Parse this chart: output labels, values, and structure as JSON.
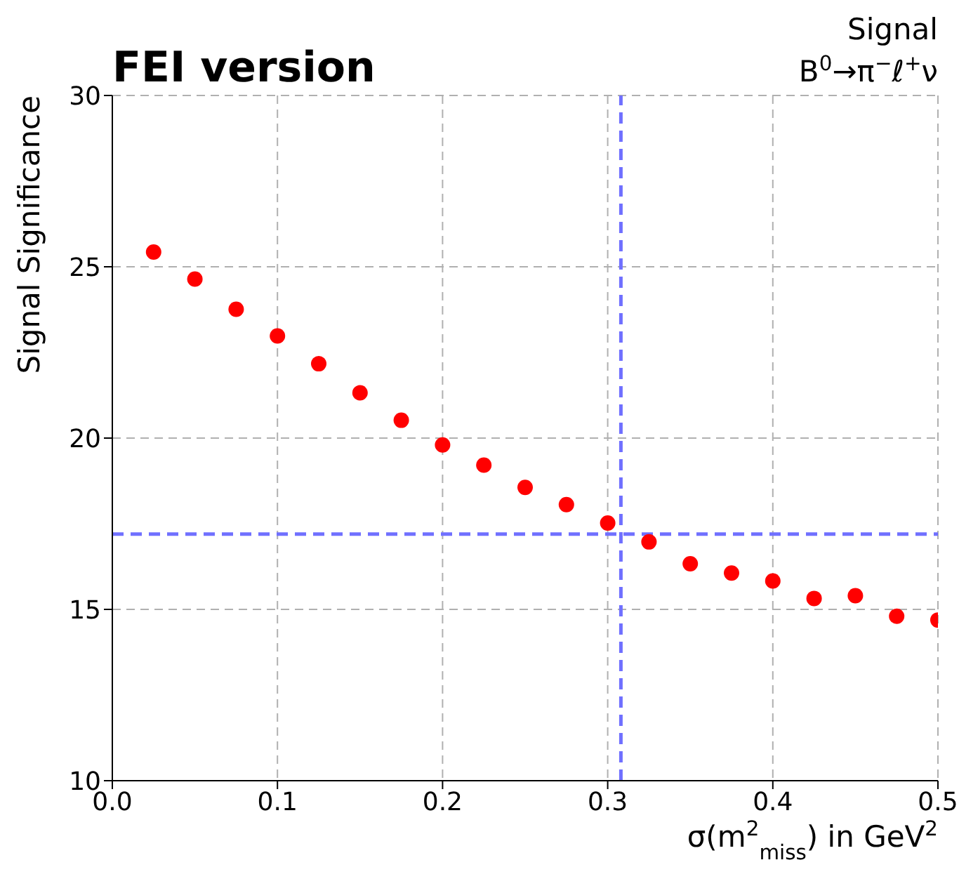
{
  "chart_data": {
    "type": "scatter",
    "title": "FEI version",
    "annotations": [
      "Signal",
      "B$^{0}$→π$^{−}$ℓ$^{+}$ν"
    ],
    "xlabel": "σ(m$^{2}$$_{miss}$) in GeV$^{2}$",
    "ylabel": "Signal Significance",
    "x": [
      0.025,
      0.05,
      0.075,
      0.1,
      0.125,
      0.15,
      0.175,
      0.2,
      0.225,
      0.25,
      0.275,
      0.3,
      0.325,
      0.35,
      0.375,
      0.4,
      0.425,
      0.45,
      0.475,
      0.5
    ],
    "series": [
      {
        "color": "#ff0000",
        "values": [
          25.43,
          24.64,
          23.76,
          22.98,
          22.17,
          21.32,
          20.52,
          19.8,
          19.21,
          18.56,
          18.06,
          17.52,
          16.97,
          16.33,
          16.06,
          15.83,
          15.32,
          15.4,
          14.8,
          14.69
        ]
      }
    ],
    "xlim": [
      0,
      0.5
    ],
    "xticks": [
      {
        "value": 0,
        "label": "0.0"
      },
      0.1,
      0.2,
      0.3,
      0.4,
      0.5
    ],
    "ylim": [
      10,
      30
    ],
    "yticks": [
      10,
      15,
      20,
      25,
      30
    ],
    "ref_lines": [
      {
        "axis": "y",
        "value": 17.2,
        "color": "#7070ff",
        "line_style": "dashed"
      },
      {
        "axis": "x",
        "value": 0.308,
        "color": "#7070ff",
        "line_style": "dashed"
      }
    ],
    "grid": true,
    "marker": "circle",
    "legend": false
  }
}
